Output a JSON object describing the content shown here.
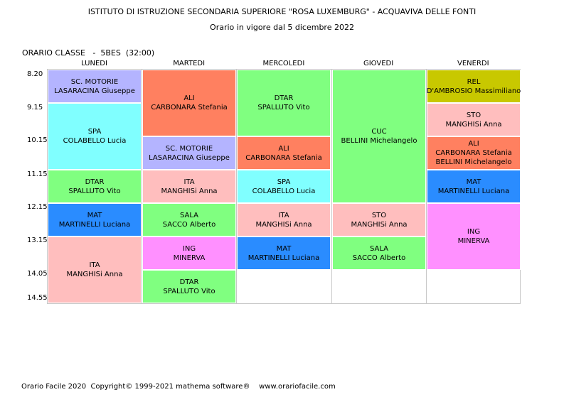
{
  "header": {
    "title": "ISTITUTO DI ISTRUZIONE SECONDARIA SUPERIORE \"ROSA LUXEMBURG\" - ACQUAVIVA DELLE FONTI",
    "subtitle": "Orario in vigore dal 5 dicembre 2022"
  },
  "class_line": "ORARIO CLASSE   -  5BES  (32:00)",
  "days": [
    "LUNEDI",
    "MARTEDI",
    "MERCOLEDI",
    "GIOVEDI",
    "VENERDI"
  ],
  "times": [
    "8.20",
    "9.15",
    "10.15",
    "11.15",
    "12.15",
    "13.15",
    "14.05",
    "14.55"
  ],
  "lessons": [
    {
      "day": 0,
      "start": 0,
      "span": 1,
      "subject": "SC. MOTORIE",
      "teachers": [
        "LASARACINA Giuseppe"
      ],
      "color": "#b4b4ff"
    },
    {
      "day": 0,
      "start": 1,
      "span": 2,
      "subject": "SPA",
      "teachers": [
        "COLABELLO Lucia"
      ],
      "color": "#80ffff"
    },
    {
      "day": 0,
      "start": 3,
      "span": 1,
      "subject": "DTAR",
      "teachers": [
        "SPALLUTO Vito"
      ],
      "color": "#80ff80"
    },
    {
      "day": 0,
      "start": 4,
      "span": 1,
      "subject": "MAT",
      "teachers": [
        "MARTINELLI Luciana"
      ],
      "color": "#2a8cff"
    },
    {
      "day": 0,
      "start": 5,
      "span": 2,
      "subject": "ITA",
      "teachers": [
        "MANGHISi Anna"
      ],
      "color": "#ffbebe"
    },
    {
      "day": 1,
      "start": 0,
      "span": 2,
      "subject": "ALI",
      "teachers": [
        "CARBONARA Stefania"
      ],
      "color": "#ff8060"
    },
    {
      "day": 1,
      "start": 2,
      "span": 1,
      "subject": "SC. MOTORIE",
      "teachers": [
        "LASARACINA Giuseppe"
      ],
      "color": "#b4b4ff"
    },
    {
      "day": 1,
      "start": 3,
      "span": 1,
      "subject": "ITA",
      "teachers": [
        "MANGHISi Anna"
      ],
      "color": "#ffbebe"
    },
    {
      "day": 1,
      "start": 4,
      "span": 1,
      "subject": "SALA",
      "teachers": [
        "SACCO Alberto"
      ],
      "color": "#80ff80"
    },
    {
      "day": 1,
      "start": 5,
      "span": 1,
      "subject": "ING",
      "teachers": [
        "MINERVA"
      ],
      "color": "#ff90ff"
    },
    {
      "day": 1,
      "start": 6,
      "span": 1,
      "subject": "DTAR",
      "teachers": [
        "SPALLUTO Vito"
      ],
      "color": "#80ff80"
    },
    {
      "day": 2,
      "start": 0,
      "span": 2,
      "subject": "DTAR",
      "teachers": [
        "SPALLUTO Vito"
      ],
      "color": "#80ff80"
    },
    {
      "day": 2,
      "start": 2,
      "span": 1,
      "subject": "ALI",
      "teachers": [
        "CARBONARA Stefania"
      ],
      "color": "#ff8060"
    },
    {
      "day": 2,
      "start": 3,
      "span": 1,
      "subject": "SPA",
      "teachers": [
        "COLABELLO Lucia"
      ],
      "color": "#80ffff"
    },
    {
      "day": 2,
      "start": 4,
      "span": 1,
      "subject": "ITA",
      "teachers": [
        "MANGHISi Anna"
      ],
      "color": "#ffbebe"
    },
    {
      "day": 2,
      "start": 5,
      "span": 1,
      "subject": "MAT",
      "teachers": [
        "MARTINELLI Luciana"
      ],
      "color": "#2a8cff"
    },
    {
      "day": 3,
      "start": 0,
      "span": 4,
      "subject": "CUC",
      "teachers": [
        "BELLINI Michelangelo"
      ],
      "color": "#80ff80"
    },
    {
      "day": 3,
      "start": 4,
      "span": 1,
      "subject": "STO",
      "teachers": [
        "MANGHISi Anna"
      ],
      "color": "#ffbebe"
    },
    {
      "day": 3,
      "start": 5,
      "span": 1,
      "subject": "SALA",
      "teachers": [
        "SACCO Alberto"
      ],
      "color": "#80ff80"
    },
    {
      "day": 4,
      "start": 0,
      "span": 1,
      "subject": "REL",
      "teachers": [
        "D'AMBROSIO Massimiliano"
      ],
      "color": "#c8c800"
    },
    {
      "day": 4,
      "start": 1,
      "span": 1,
      "subject": "STO",
      "teachers": [
        "MANGHISi Anna"
      ],
      "color": "#ffbebe"
    },
    {
      "day": 4,
      "start": 2,
      "span": 1,
      "subject": "ALI",
      "teachers": [
        "CARBONARA Stefania",
        "BELLINI Michelangelo"
      ],
      "color": "#ff8060"
    },
    {
      "day": 4,
      "start": 3,
      "span": 1,
      "subject": "MAT",
      "teachers": [
        "MARTINELLI Luciana"
      ],
      "color": "#2a8cff"
    },
    {
      "day": 4,
      "start": 4,
      "span": 2,
      "subject": "ING",
      "teachers": [
        "MINERVA"
      ],
      "color": "#ff90ff"
    }
  ],
  "footer": "Orario Facile 2020  Copyright© 1999-2021 mathema software®    www.orariofacile.com"
}
